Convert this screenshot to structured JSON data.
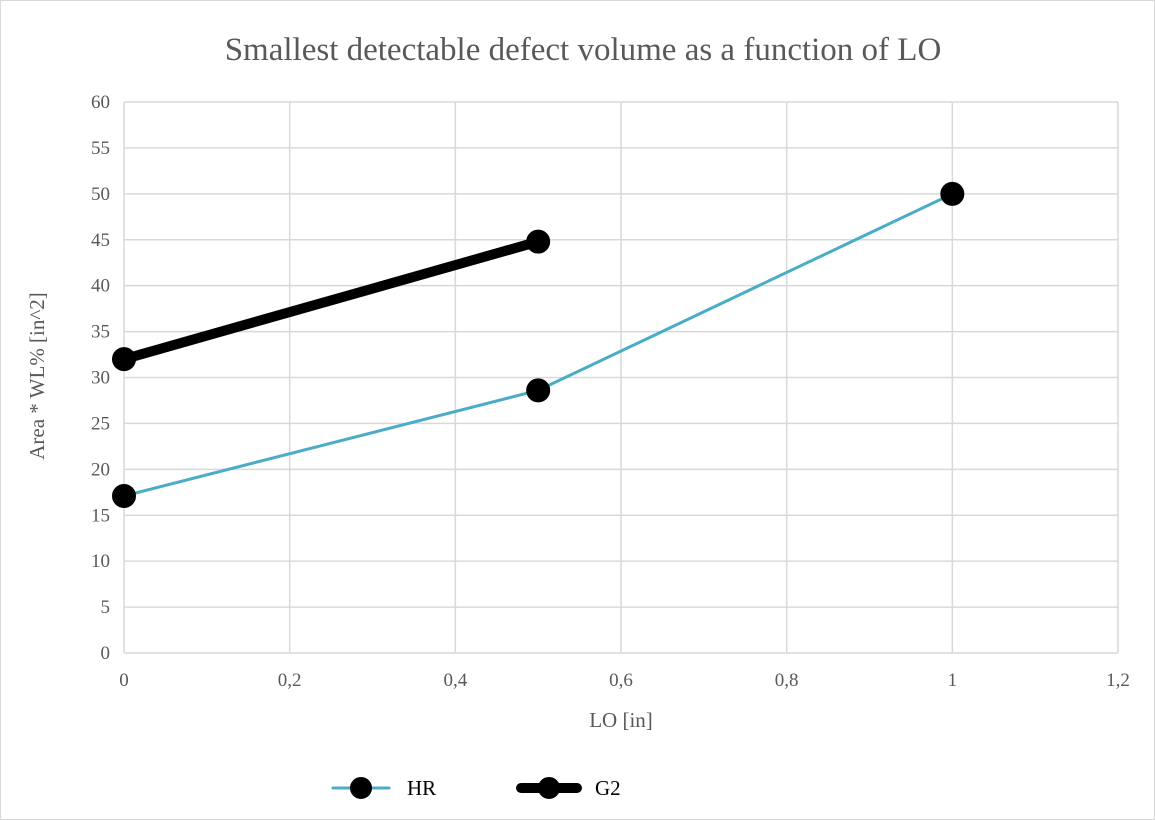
{
  "chart_data": {
    "type": "line",
    "title": "Smallest detectable defect volume as a function of LO",
    "xlabel": "LO [in]",
    "ylabel": "Area * WL% [in^2]",
    "xlim": [
      0,
      1.2
    ],
    "ylim": [
      0,
      60
    ],
    "x_ticks": [
      "0",
      "0,2",
      "0,4",
      "0,6",
      "0,8",
      "1",
      "1,2"
    ],
    "y_ticks": [
      "0",
      "5",
      "10",
      "15",
      "20",
      "25",
      "30",
      "35",
      "40",
      "45",
      "50",
      "55",
      "60"
    ],
    "grid": true,
    "legend_position": "bottom",
    "series": [
      {
        "name": "HR",
        "color": "#4bacc6",
        "line_style": "thin",
        "marker_color": "#000000",
        "points": [
          {
            "x": 0,
            "y": 17.1
          },
          {
            "x": 0.5,
            "y": 28.6
          },
          {
            "x": 1.0,
            "y": 50.0
          }
        ]
      },
      {
        "name": "G2",
        "color": "#000000",
        "line_style": "thick",
        "marker_color": "#000000",
        "points": [
          {
            "x": 0,
            "y": 32.0
          },
          {
            "x": 0.5,
            "y": 44.8
          }
        ]
      }
    ]
  }
}
